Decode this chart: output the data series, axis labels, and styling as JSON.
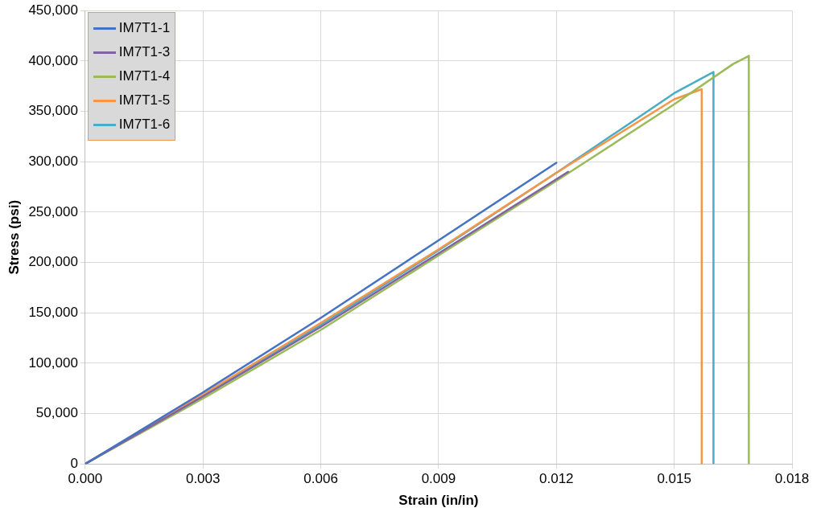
{
  "chart_data": {
    "type": "line",
    "xlabel": "Strain (in/in)",
    "ylabel": "Stress (psi)",
    "xlim": [
      0,
      0.018
    ],
    "xticks": [
      {
        "value": 0,
        "label": "0.000"
      },
      {
        "value": 0.003,
        "label": "0.003"
      },
      {
        "value": 0.006,
        "label": "0.006"
      },
      {
        "value": 0.009,
        "label": "0.009"
      },
      {
        "value": 0.012,
        "label": "0.012"
      },
      {
        "value": 0.015,
        "label": "0.015"
      },
      {
        "value": 0.018,
        "label": "0.018"
      }
    ],
    "ylim": [
      0,
      450000
    ],
    "yticks": [
      {
        "value": 0,
        "label": "0"
      },
      {
        "value": 50000,
        "label": "50,000"
      },
      {
        "value": 100000,
        "label": "100,000"
      },
      {
        "value": 150000,
        "label": "150,000"
      },
      {
        "value": 200000,
        "label": "200,000"
      },
      {
        "value": 250000,
        "label": "250,000"
      },
      {
        "value": 300000,
        "label": "300,000"
      },
      {
        "value": 350000,
        "label": "350,000"
      },
      {
        "value": 400000,
        "label": "400,000"
      },
      {
        "value": 450000,
        "label": "450,000"
      }
    ],
    "grid": true,
    "legend": "top left",
    "marker": "none",
    "line_style": "solid",
    "series": [
      {
        "name": "IM7T1-1",
        "color": "#4472c4",
        "x": [
          0,
          0.003,
          0.006,
          0.009,
          0.012
        ],
        "values": [
          0,
          71000,
          145000,
          222000,
          299000
        ]
      },
      {
        "name": "IM7T1-3",
        "color": "#8064a2",
        "x": [
          0,
          0.003,
          0.006,
          0.009,
          0.0123
        ],
        "values": [
          0,
          67000,
          136000,
          209000,
          290000
        ]
      },
      {
        "name": "IM7T1-4",
        "color": "#9bbb59",
        "x": [
          0,
          0.003,
          0.006,
          0.009,
          0.012,
          0.015,
          0.0165,
          0.0169,
          0.0169
        ],
        "values": [
          0,
          65000,
          133000,
          207000,
          281000,
          357000,
          397000,
          405000,
          0
        ]
      },
      {
        "name": "IM7T1-5",
        "color": "#f79646",
        "x": [
          0,
          0.003,
          0.006,
          0.009,
          0.012,
          0.015,
          0.0157,
          0.0157
        ],
        "values": [
          0,
          69000,
          140000,
          213000,
          289000,
          362000,
          372000,
          0
        ]
      },
      {
        "name": "IM7T1-6",
        "color": "#4bacc6",
        "x": [
          0,
          0.003,
          0.006,
          0.009,
          0.012,
          0.015,
          0.016,
          0.016
        ],
        "values": [
          0,
          68000,
          138000,
          212000,
          289000,
          368000,
          389000,
          0
        ]
      }
    ]
  }
}
